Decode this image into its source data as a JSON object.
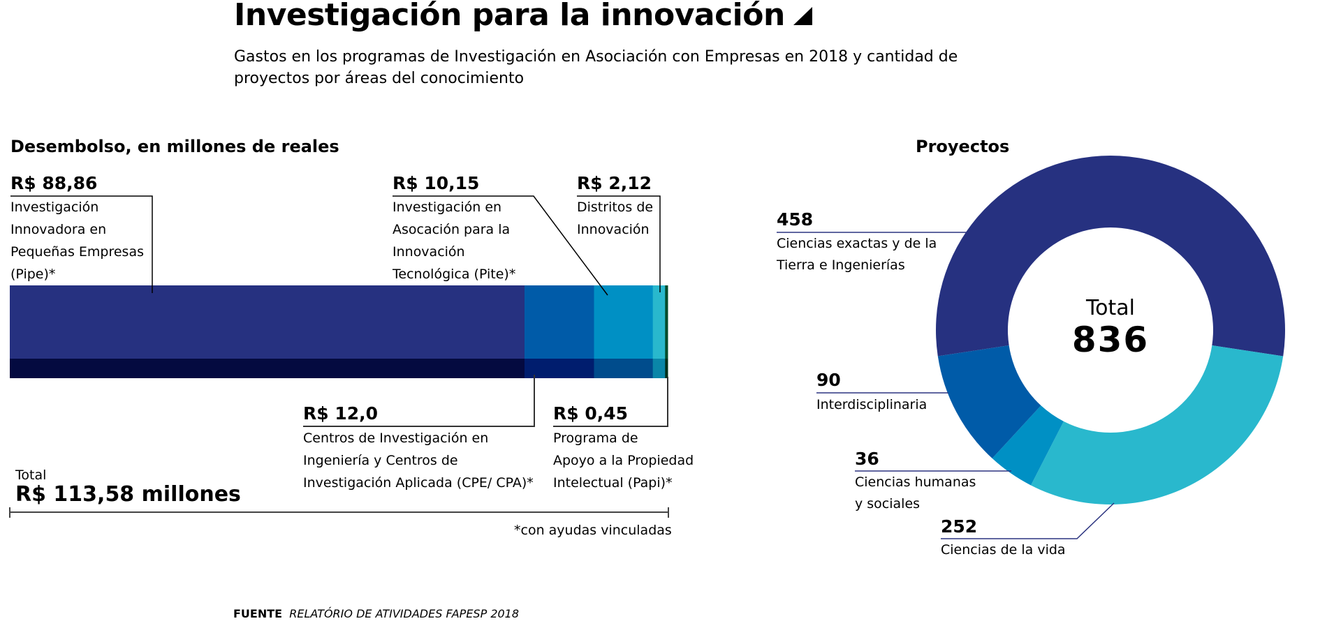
{
  "header": {
    "title": "Investigación para la innovación",
    "subtitle": "Gastos en los programas de Investigación en Asociación con Empresas en 2018 y cantidad de proyectos por áreas del conocimiento"
  },
  "chart_data": [
    {
      "type": "bar",
      "orientation": "horizontal-stacked",
      "title": "Desembolso, en millones de reales",
      "unit": "millones de reales",
      "categories": [
        "Pipe",
        "CPE/CPA",
        "Pite",
        "Distritos de Innovación",
        "Papi"
      ],
      "series": [
        {
          "name": "Investigación Innovadora en Pequeñas Empresas (Pipe)*",
          "value": 88.86,
          "value_label": "R$ 88,86",
          "label_lines": [
            "Investigación",
            "Innovadora en",
            "Pequeñas Empresas",
            "(Pipe)*"
          ],
          "color": "#263180",
          "shade": "#040a40"
        },
        {
          "name": "Centros de Investigación en Ingeniería y Centros de Investigación Aplicada (CPE/ CPA)*",
          "value": 12.0,
          "value_label": "R$ 12,0",
          "label_lines": [
            "Centros de Investigación en",
            "Ingeniería y Centros de",
            "Investigación Aplicada (CPE/ CPA)*"
          ],
          "color": "#005ba8",
          "shade": "#001d6e"
        },
        {
          "name": "Investigación en Asocación para la Innovación Tecnológica (Pite)*",
          "value": 10.15,
          "value_label": "R$ 10,15",
          "label_lines": [
            "Investigación en",
            "Asocación para la",
            "Innovación",
            "Tecnológica (Pite)*"
          ],
          "color": "#0090c4",
          "shade": "#004c8c"
        },
        {
          "name": "Distritos de Innovación",
          "value": 2.12,
          "value_label": "R$ 2,12",
          "label_lines": [
            "Distritos de",
            "Innovación"
          ],
          "color": "#29b8cd",
          "shade": "#0a86a8"
        },
        {
          "name": "Programa de Apoyo a la Propiedad Intelectual (Papi)*",
          "value": 0.45,
          "value_label": "R$ 0,45",
          "label_lines": [
            "Programa de",
            "Apoyo a la Propiedad",
            "Intelectual (Papi)*"
          ],
          "color": "#004d2c",
          "shade": "#00301a"
        }
      ],
      "total": {
        "label": "Total",
        "value": 113.58,
        "value_label": "R$ 113,58 millones"
      },
      "footnote": "*con ayudas vinculadas"
    },
    {
      "type": "pie",
      "variant": "donut",
      "title": "Proyectos",
      "center": {
        "label": "Total",
        "value": 836
      },
      "slices": [
        {
          "name": "Ciencias exactas y de la Tierra e Ingenierías",
          "value": 458,
          "label_lines": [
            "Ciencias exactas y de la",
            "Tierra e Ingenierías"
          ],
          "color": "#263180"
        },
        {
          "name": "Ciencias de la vida",
          "value": 252,
          "label_lines": [
            "Ciencias de la vida"
          ],
          "color": "#29b8cd"
        },
        {
          "name": "Ciencias humanas y sociales",
          "value": 36,
          "label_lines": [
            "Ciencias humanas",
            "y sociales"
          ],
          "color": "#0090c4"
        },
        {
          "name": "Interdisciplinaria",
          "value": 90,
          "label_lines": [
            "Interdisciplinaria"
          ],
          "color": "#005ba8"
        }
      ]
    }
  ],
  "source": {
    "prefix": "FUENTE",
    "text": "RELATÓRIO DE ATIVIDADES FAPESP 2018"
  },
  "colors": {
    "leader": "#000000",
    "donut_leader": "#2c3480"
  }
}
